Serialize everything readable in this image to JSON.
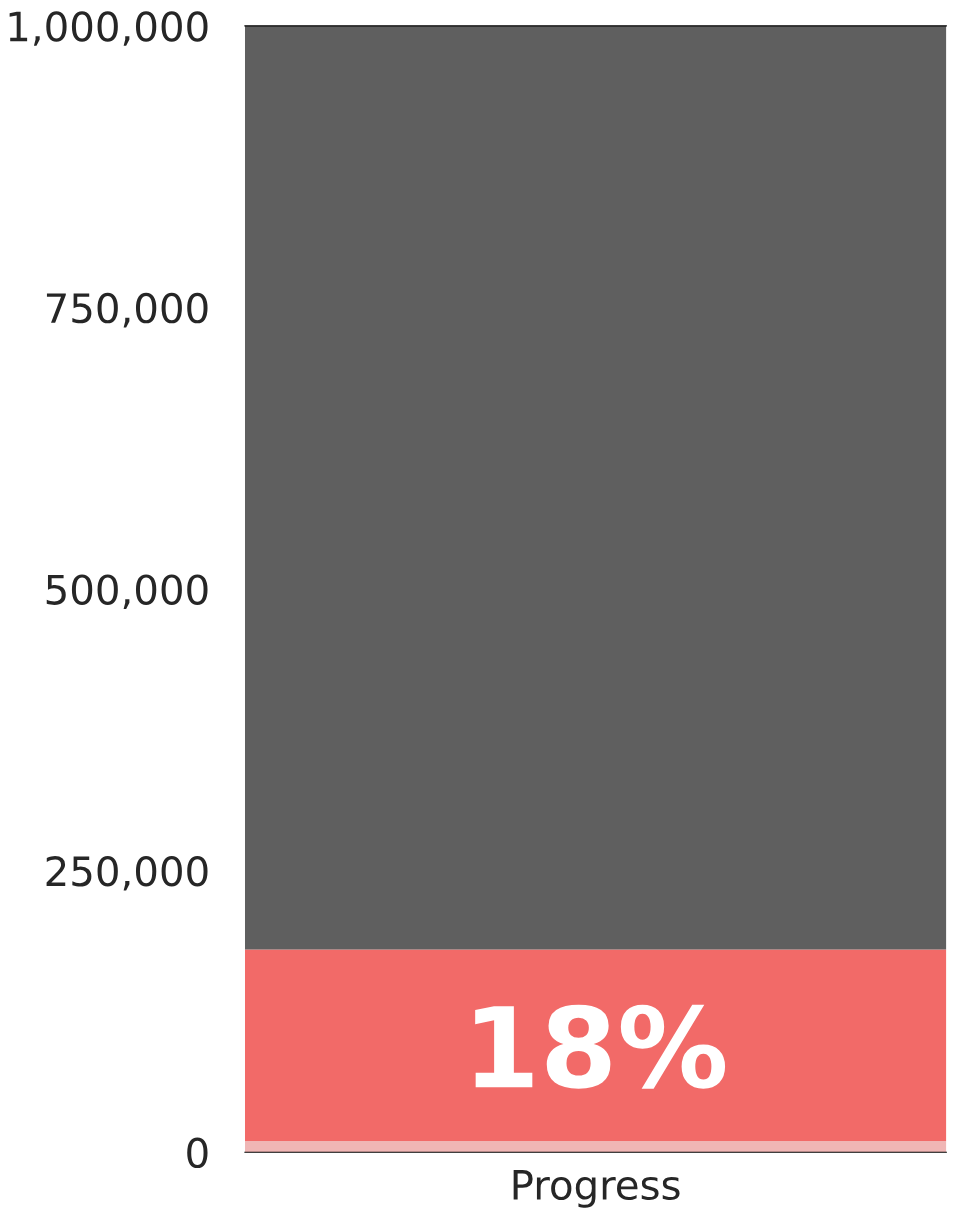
{
  "chart_data": {
    "type": "bar",
    "stacked": true,
    "categories": [
      "Progress"
    ],
    "series": [
      {
        "color": "#f0b6b5",
        "values": [
          10000
        ]
      },
      {
        "color": "#f26a68",
        "values": [
          170000
        ]
      },
      {
        "color": "#5f5f5f",
        "values": [
          820000
        ]
      }
    ],
    "ylim": [
      0,
      1000000
    ],
    "yticks": [
      {
        "value": 0,
        "label": "0"
      },
      {
        "value": 250000,
        "label": "250,000"
      },
      {
        "value": 500000,
        "label": "500,000"
      },
      {
        "value": 750000,
        "label": "750,000"
      },
      {
        "value": 1000000,
        "label": "1,000,000"
      }
    ],
    "grid": false,
    "legend": false,
    "annotations": [
      "18%"
    ]
  }
}
